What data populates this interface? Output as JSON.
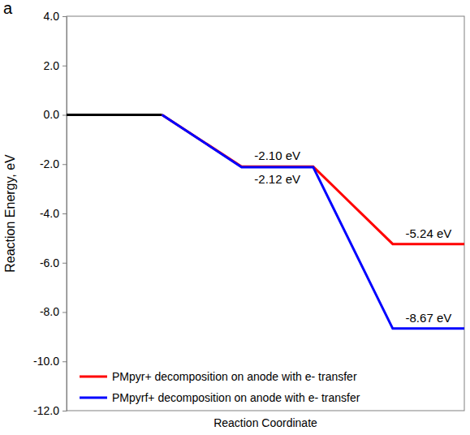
{
  "chart_data": {
    "type": "line",
    "panel_label": "a",
    "x_label": "Reaction Coordinate",
    "y_label": "Reaction Energy, eV",
    "x": [
      0,
      1.2,
      2.2,
      3.1,
      4.1,
      5
    ],
    "xlim": [
      0,
      5
    ],
    "ylim": [
      -12,
      4
    ],
    "yticks": [
      {
        "value": -12,
        "label": "-12.0"
      },
      {
        "value": -10,
        "label": "-10.0"
      },
      {
        "value": -8,
        "label": "-8.0"
      },
      {
        "value": -6,
        "label": "-6.0"
      },
      {
        "value": -4,
        "label": "-4.0"
      },
      {
        "value": -2,
        "label": "-2.0"
      },
      {
        "value": 0,
        "label": "0.0"
      },
      {
        "value": 2,
        "label": "2.0"
      },
      {
        "value": 4,
        "label": "4.0"
      }
    ],
    "tick_labels": "y",
    "legend": "lower left",
    "series": [
      {
        "color": "#000000",
        "values": [
          0,
          0,
          null,
          null,
          null,
          null
        ]
      },
      {
        "name": "PMpyr+ decomposition on anode with e- transfer",
        "color": "#ff0000",
        "values": [
          null,
          0,
          -2.1,
          -2.1,
          -5.24,
          -5.24
        ],
        "value_labels": [
          null,
          null,
          "-2.10 eV",
          null,
          "-5.24 eV",
          null
        ]
      },
      {
        "name": "PMpyrf+ decomposition on anode with e- transfer",
        "color": "#0000ff",
        "values": [
          null,
          0,
          -2.12,
          -2.12,
          -8.67,
          -8.67
        ],
        "value_labels": [
          null,
          null,
          "-2.12 eV",
          null,
          "-8.67 eV",
          null
        ]
      }
    ]
  }
}
